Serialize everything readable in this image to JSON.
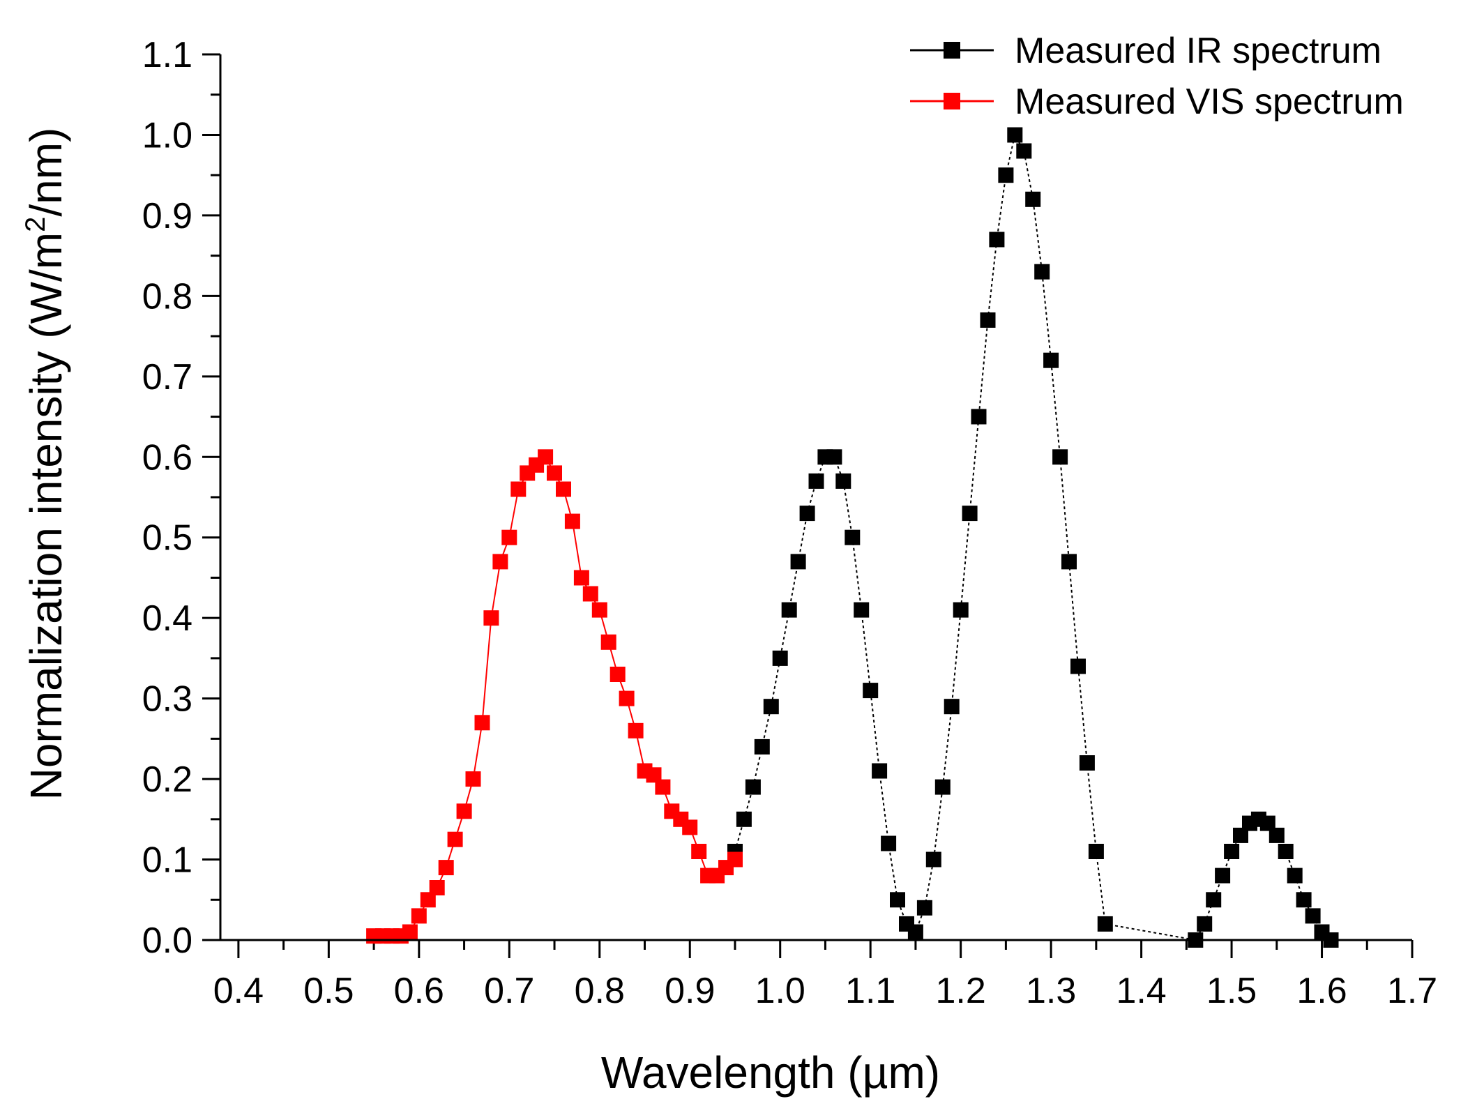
{
  "chart_data": {
    "type": "scatter",
    "title": "",
    "xlabel": "Wavelength (µm)",
    "ylabel_main": "Normalization intensity (W/m",
    "ylabel_sup": "2",
    "ylabel_end": "/nm)",
    "xlim": [
      0.38,
      1.7
    ],
    "ylim": [
      0.0,
      1.1
    ],
    "x_ticks": [
      "0.4",
      "0.5",
      "0.6",
      "0.7",
      "0.8",
      "0.9",
      "1.0",
      "1.1",
      "1.2",
      "1.3",
      "1.4",
      "1.5",
      "1.6",
      "1.7"
    ],
    "y_ticks": [
      "0.0",
      "0.1",
      "0.2",
      "0.3",
      "0.4",
      "0.5",
      "0.6",
      "0.7",
      "0.8",
      "0.9",
      "1.0",
      "1.1"
    ],
    "legend_position": "top-right",
    "series": [
      {
        "name": "Measured IR spectrum",
        "color": "#000000",
        "marker": "square",
        "x": [
          0.95,
          0.96,
          0.97,
          0.98,
          0.99,
          1.0,
          1.01,
          1.02,
          1.03,
          1.04,
          1.05,
          1.06,
          1.07,
          1.08,
          1.09,
          1.1,
          1.11,
          1.12,
          1.13,
          1.14,
          1.15,
          1.16,
          1.17,
          1.18,
          1.19,
          1.2,
          1.21,
          1.22,
          1.23,
          1.24,
          1.25,
          1.26,
          1.27,
          1.28,
          1.29,
          1.3,
          1.31,
          1.32,
          1.33,
          1.34,
          1.35,
          1.36,
          1.46,
          1.47,
          1.48,
          1.49,
          1.5,
          1.51,
          1.52,
          1.53,
          1.54,
          1.55,
          1.56,
          1.57,
          1.58,
          1.59,
          1.6,
          1.61
        ],
        "y": [
          0.11,
          0.15,
          0.19,
          0.24,
          0.29,
          0.35,
          0.41,
          0.47,
          0.53,
          0.57,
          0.6,
          0.6,
          0.57,
          0.5,
          0.41,
          0.31,
          0.21,
          0.12,
          0.05,
          0.02,
          0.01,
          0.04,
          0.1,
          0.19,
          0.29,
          0.41,
          0.53,
          0.65,
          0.77,
          0.87,
          0.95,
          1.0,
          0.98,
          0.92,
          0.83,
          0.72,
          0.6,
          0.47,
          0.34,
          0.22,
          0.11,
          0.02,
          0.0,
          0.02,
          0.05,
          0.08,
          0.11,
          0.13,
          0.145,
          0.15,
          0.145,
          0.13,
          0.11,
          0.08,
          0.05,
          0.03,
          0.01,
          0.0
        ]
      },
      {
        "name": "Measured VIS spectrum",
        "color": "#ff0000",
        "marker": "square",
        "x": [
          0.55,
          0.56,
          0.57,
          0.58,
          0.59,
          0.6,
          0.61,
          0.62,
          0.63,
          0.64,
          0.65,
          0.66,
          0.67,
          0.68,
          0.69,
          0.7,
          0.71,
          0.72,
          0.73,
          0.74,
          0.75,
          0.76,
          0.77,
          0.78,
          0.79,
          0.8,
          0.81,
          0.82,
          0.83,
          0.84,
          0.85,
          0.86,
          0.87,
          0.88,
          0.89,
          0.9,
          0.91,
          0.92,
          0.93,
          0.94,
          0.95
        ],
        "y": [
          0.005,
          0.005,
          0.005,
          0.005,
          0.01,
          0.03,
          0.05,
          0.065,
          0.09,
          0.125,
          0.16,
          0.2,
          0.27,
          0.4,
          0.47,
          0.5,
          0.56,
          0.58,
          0.59,
          0.6,
          0.58,
          0.56,
          0.52,
          0.45,
          0.43,
          0.41,
          0.37,
          0.33,
          0.3,
          0.26,
          0.21,
          0.205,
          0.19,
          0.16,
          0.15,
          0.14,
          0.11,
          0.08,
          0.08,
          0.09,
          0.1
        ]
      }
    ]
  }
}
